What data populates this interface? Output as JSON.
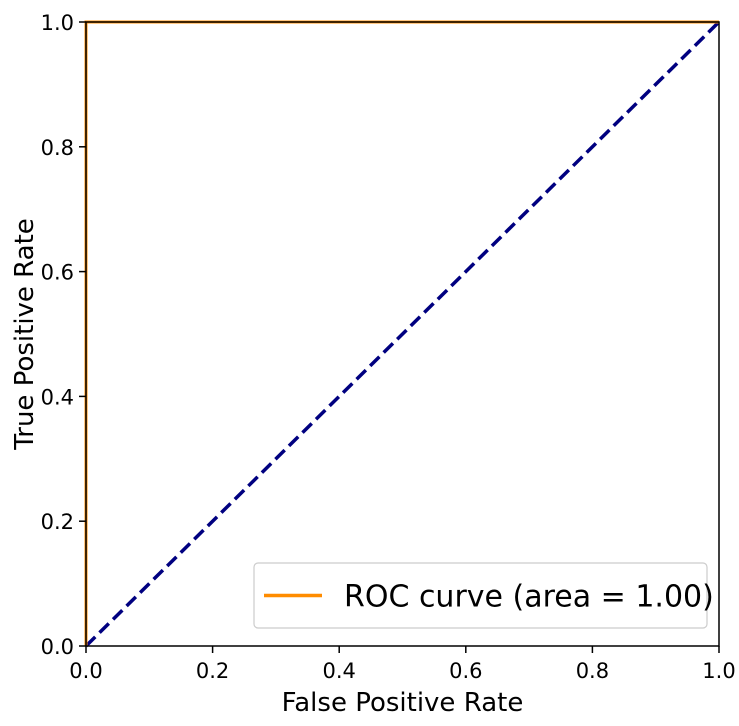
{
  "chart_data": {
    "type": "line",
    "xlabel": "False Positive Rate",
    "ylabel": "True Positive Rate",
    "xlim": [
      0.0,
      1.0
    ],
    "ylim": [
      0.0,
      1.0
    ],
    "x_ticks": [
      0.0,
      0.2,
      0.4,
      0.6,
      0.8,
      1.0
    ],
    "y_ticks": [
      0.0,
      0.2,
      0.4,
      0.6,
      0.8,
      1.0
    ],
    "x_tick_labels": [
      "0.0",
      "0.2",
      "0.4",
      "0.6",
      "0.8",
      "1.0"
    ],
    "y_tick_labels": [
      "0.0",
      "0.2",
      "0.4",
      "0.6",
      "0.8",
      "1.0"
    ],
    "grid": false,
    "legend_position": "lower-right",
    "series": [
      {
        "name": "ROC curve (area = 1.00)",
        "color": "#ff8c00",
        "style": "solid",
        "x": [
          0.0,
          0.0,
          1.0
        ],
        "y": [
          0.0,
          1.0,
          1.0
        ]
      },
      {
        "color": "#000080",
        "style": "dashed",
        "x": [
          0.0,
          1.0
        ],
        "y": [
          0.0,
          1.0
        ]
      }
    ]
  }
}
